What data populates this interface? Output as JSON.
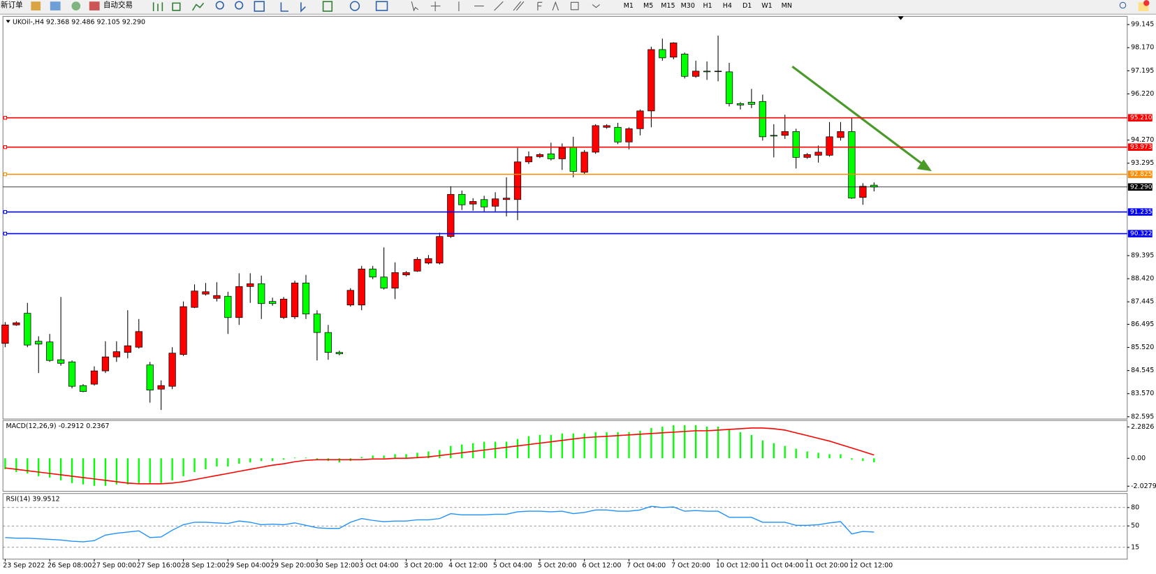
{
  "toolbar": {
    "new_order": "新订单",
    "auto_trading": "自动交易",
    "timeframes": [
      "M1",
      "M5",
      "M15",
      "M30",
      "H1",
      "H4",
      "D1",
      "W1",
      "MN"
    ]
  },
  "chart_data": [
    {
      "type": "candlestick",
      "title": "UKOil-,H4  92.368 92.486 92.105 92.290",
      "up_color": "#ff0000",
      "down_color": "#00ff00",
      "categories": [
        "23 Sep 2022",
        null,
        null,
        null,
        "26 Sep 08:00",
        null,
        null,
        null,
        "27 Sep 00:00",
        null,
        null,
        null,
        "27 Sep 16:00",
        null,
        null,
        null,
        "28 Sep 12:00",
        null,
        null,
        null,
        "29 Sep 04:00",
        null,
        null,
        null,
        "29 Sep 20:00",
        null,
        null,
        null,
        "30 Sep 12:00",
        null,
        null,
        null,
        "3 Oct 04:00",
        null,
        null,
        null,
        "3 Oct 20:00",
        null,
        null,
        null,
        "4 Oct 12:00",
        null,
        null,
        null,
        "5 Oct 04:00",
        null,
        null,
        null,
        "5 Oct 20:00",
        null,
        null,
        null,
        "6 Oct 12:00",
        null,
        null,
        null,
        "7 Oct 04:00",
        null,
        null,
        null,
        "7 Oct 20:00",
        null,
        null,
        null,
        "10 Oct 12:00",
        null,
        null,
        null,
        "11 Oct 04:00",
        null,
        null,
        null,
        "11 Oct 20:00",
        null,
        null,
        null,
        "12 Oct 12:00",
        null,
        null
      ],
      "ohlc": [
        [
          85.69,
          86.59,
          85.53,
          86.47
        ],
        [
          86.47,
          86.62,
          86.43,
          86.56
        ],
        [
          86.96,
          87.4,
          85.53,
          85.62
        ],
        [
          85.78,
          85.99,
          84.44,
          85.66
        ],
        [
          85.75,
          86.09,
          84.91,
          84.97
        ],
        [
          85.0,
          87.65,
          84.75,
          84.85
        ],
        [
          84.91,
          84.97,
          83.79,
          83.88
        ],
        [
          83.91,
          83.97,
          83.63,
          83.66
        ],
        [
          83.97,
          84.72,
          83.91,
          84.53
        ],
        [
          84.53,
          85.78,
          84.44,
          85.12
        ],
        [
          85.12,
          85.78,
          84.91,
          85.34
        ],
        [
          85.31,
          87.09,
          85.06,
          85.59
        ],
        [
          85.53,
          86.72,
          85.47,
          86.19
        ],
        [
          84.78,
          84.91,
          83.19,
          83.72
        ],
        [
          83.76,
          84.13,
          82.88,
          83.91
        ],
        [
          83.88,
          85.53,
          83.76,
          85.28
        ],
        [
          85.22,
          87.46,
          85.16,
          87.24
        ],
        [
          87.21,
          88.18,
          87.18,
          87.9
        ],
        [
          87.77,
          88.24,
          87.71,
          87.87
        ],
        [
          87.59,
          88.27,
          87.46,
          87.71
        ],
        [
          87.68,
          87.87,
          86.09,
          86.78
        ],
        [
          86.78,
          88.65,
          86.47,
          88.09
        ],
        [
          88.09,
          88.65,
          87.4,
          88.21
        ],
        [
          88.21,
          88.55,
          86.72,
          87.37
        ],
        [
          87.46,
          87.62,
          87.28,
          87.37
        ],
        [
          86.78,
          87.65,
          86.72,
          87.56
        ],
        [
          86.81,
          88.34,
          86.72,
          88.24
        ],
        [
          88.24,
          88.58,
          86.72,
          86.93
        ],
        [
          86.93,
          87.09,
          84.97,
          86.15
        ],
        [
          86.15,
          86.47,
          85.0,
          85.31
        ],
        [
          85.31,
          85.38,
          85.19,
          85.25
        ],
        [
          87.31,
          88.02,
          87.24,
          87.93
        ],
        [
          87.31,
          88.96,
          87.09,
          88.83
        ],
        [
          88.83,
          88.96,
          88.4,
          88.49
        ],
        [
          88.49,
          89.74,
          87.96,
          88.02
        ],
        [
          88.02,
          89.11,
          87.56,
          88.68
        ],
        [
          88.58,
          88.74,
          88.52,
          88.68
        ],
        [
          88.74,
          89.33,
          88.71,
          89.24
        ],
        [
          89.08,
          89.42,
          89.02,
          89.27
        ],
        [
          89.08,
          90.36,
          89.02,
          90.2
        ],
        [
          90.2,
          92.32,
          90.14,
          91.98
        ],
        [
          91.98,
          92.14,
          91.32,
          91.54
        ],
        [
          91.57,
          91.82,
          91.29,
          91.68
        ],
        [
          91.76,
          91.92,
          91.26,
          91.45
        ],
        [
          91.48,
          92.07,
          91.26,
          91.79
        ],
        [
          91.76,
          92.7,
          91.05,
          91.82
        ],
        [
          91.76,
          93.94,
          90.89,
          93.35
        ],
        [
          93.35,
          93.79,
          93.26,
          93.57
        ],
        [
          93.57,
          93.72,
          93.51,
          93.66
        ],
        [
          93.69,
          94.16,
          93.41,
          93.48
        ],
        [
          93.48,
          94.13,
          93.01,
          93.94
        ],
        [
          93.97,
          94.41,
          92.7,
          92.95
        ],
        [
          92.91,
          93.85,
          92.82,
          93.76
        ],
        [
          93.76,
          94.94,
          93.69,
          94.88
        ],
        [
          94.81,
          94.94,
          94.75,
          94.88
        ],
        [
          94.81,
          95.0,
          94.1,
          94.19
        ],
        [
          94.19,
          94.81,
          93.88,
          94.75
        ],
        [
          94.75,
          95.56,
          94.47,
          95.5
        ],
        [
          95.5,
          98.21,
          94.81,
          98.09
        ],
        [
          98.09,
          98.55,
          97.62,
          97.74
        ],
        [
          97.77,
          98.4,
          97.68,
          98.37
        ],
        [
          97.9,
          97.96,
          96.87,
          96.96
        ],
        [
          96.96,
          97.62,
          96.9,
          97.18
        ],
        [
          97.18,
          97.59,
          96.81,
          97.15
        ],
        [
          97.18,
          98.68,
          96.75,
          97.16
        ],
        [
          97.15,
          97.53,
          95.69,
          95.81
        ],
        [
          95.81,
          95.87,
          95.56,
          95.75
        ],
        [
          95.87,
          96.43,
          95.62,
          95.78
        ],
        [
          95.9,
          96.19,
          94.25,
          94.41
        ],
        [
          94.47,
          94.94,
          93.54,
          94.44
        ],
        [
          94.47,
          95.34,
          94.32,
          94.63
        ],
        [
          94.63,
          94.75,
          93.07,
          93.54
        ],
        [
          93.54,
          93.72,
          93.48,
          93.66
        ],
        [
          93.63,
          94.04,
          93.32,
          93.76
        ],
        [
          93.63,
          95.03,
          93.57,
          94.41
        ],
        [
          94.38,
          95.03,
          94.25,
          94.63
        ],
        [
          94.63,
          95.19,
          91.79,
          91.82
        ],
        [
          91.85,
          92.45,
          91.54,
          92.32
        ],
        [
          92.368,
          92.486,
          92.105,
          92.29
        ]
      ],
      "ylim": [
        82.53,
        99.43
      ],
      "yticks": [
        99.145,
        {
          "value": 98.17,
          "label": "98.170"
        },
        97.195,
        {
          "value": 96.22,
          "label": "96.220"
        },
        {
          "value": 94.27,
          "label": "94.270"
        },
        93.295,
        89.395,
        {
          "value": 88.42,
          "label": "88.420"
        },
        87.445,
        86.495,
        {
          "value": 85.52,
          "label": "85.520"
        },
        84.545,
        {
          "value": 83.57,
          "label": "83.570"
        },
        82.595
      ],
      "levels": [
        {
          "value": 95.21,
          "label": "95.210",
          "color": "#ff0000"
        },
        {
          "value": 93.973,
          "label": "93.973",
          "color": "#ff0000"
        },
        {
          "value": 92.825,
          "label": "92.825",
          "color": "#ff8c00"
        },
        {
          "value": 92.29,
          "label": "92.290",
          "color": "#000000"
        },
        {
          "value": 91.235,
          "label": "91.235",
          "color": "#0000ff"
        },
        {
          "value": 90.322,
          "label": "90.322",
          "color": "#0000ff"
        }
      ]
    },
    {
      "type": "macd",
      "title": "MACD(12,26,9) -0.2912 0.2367",
      "histogram_color": "#00ff00",
      "signal_color": "#ff0000",
      "histogram": [
        -0.8,
        -1.0,
        -1.1,
        -1.3,
        -1.4,
        -1.6,
        -1.8,
        -1.9,
        -2.0,
        -2.0,
        -1.9,
        -1.9,
        -1.8,
        -1.8,
        -1.8,
        -1.6,
        -1.3,
        -1.0,
        -0.8,
        -0.6,
        -0.6,
        -0.4,
        -0.3,
        -0.2,
        -0.2,
        -0.1,
        0.05,
        0.05,
        -0.1,
        -0.2,
        -0.3,
        -0.2,
        0.1,
        0.2,
        0.2,
        0.3,
        0.3,
        0.4,
        0.5,
        0.6,
        0.9,
        1.0,
        1.1,
        1.2,
        1.2,
        1.2,
        1.4,
        1.6,
        1.7,
        1.7,
        1.8,
        1.8,
        1.8,
        1.9,
        1.9,
        1.9,
        1.9,
        2.0,
        2.2,
        2.3,
        2.4,
        2.4,
        2.4,
        2.3,
        2.3,
        2.1,
        1.9,
        1.7,
        1.3,
        1.1,
        0.9,
        0.7,
        0.5,
        0.4,
        0.3,
        0.3,
        -0.1,
        -0.2,
        -0.2912
      ],
      "signal": [
        -0.7,
        -0.8,
        -0.9,
        -1.0,
        -1.1,
        -1.2,
        -1.3,
        -1.4,
        -1.5,
        -1.6,
        -1.7,
        -1.8,
        -1.85,
        -1.85,
        -1.85,
        -1.8,
        -1.7,
        -1.55,
        -1.4,
        -1.25,
        -1.1,
        -0.95,
        -0.8,
        -0.65,
        -0.5,
        -0.4,
        -0.25,
        -0.15,
        -0.1,
        -0.1,
        -0.1,
        -0.1,
        -0.1,
        -0.05,
        -0.05,
        0.0,
        0.0,
        0.05,
        0.1,
        0.2,
        0.3,
        0.4,
        0.5,
        0.6,
        0.7,
        0.8,
        0.9,
        1.0,
        1.1,
        1.2,
        1.3,
        1.4,
        1.5,
        1.55,
        1.6,
        1.65,
        1.7,
        1.75,
        1.8,
        1.85,
        1.9,
        1.95,
        2.0,
        2.0,
        2.05,
        2.1,
        2.15,
        2.2,
        2.2,
        2.15,
        2.05,
        1.85,
        1.65,
        1.45,
        1.25,
        1.0,
        0.75,
        0.5,
        0.2367
      ],
      "ylim": [
        -2.29,
        2.64
      ],
      "yticks": [
        2.2826,
        {
          "value": 0,
          "label": "0.00"
        },
        -2.0279
      ]
    },
    {
      "type": "line",
      "title": "RSI(14) 39.9512",
      "color": "#1e90ff",
      "grid": true,
      "values": [
        31,
        30,
        30,
        29,
        28,
        27,
        25,
        24,
        26,
        35,
        38,
        40,
        42,
        31,
        32,
        43,
        52,
        56,
        56,
        55,
        54,
        58,
        56,
        52,
        53,
        52,
        55,
        51,
        47,
        46,
        46,
        56,
        62,
        59,
        57,
        58,
        58,
        60,
        60,
        62,
        70,
        68,
        68,
        68,
        69,
        69,
        73,
        74,
        74,
        73,
        74,
        70,
        72,
        76,
        76,
        74,
        74,
        76,
        82,
        80,
        81,
        74,
        75,
        74,
        74,
        64,
        64,
        64,
        56,
        56,
        56,
        51,
        51,
        52,
        55,
        57,
        37,
        41,
        39.9512
      ],
      "ylim": [
        -3,
        101.7
      ],
      "yticks": [
        80,
        50,
        15
      ]
    }
  ]
}
